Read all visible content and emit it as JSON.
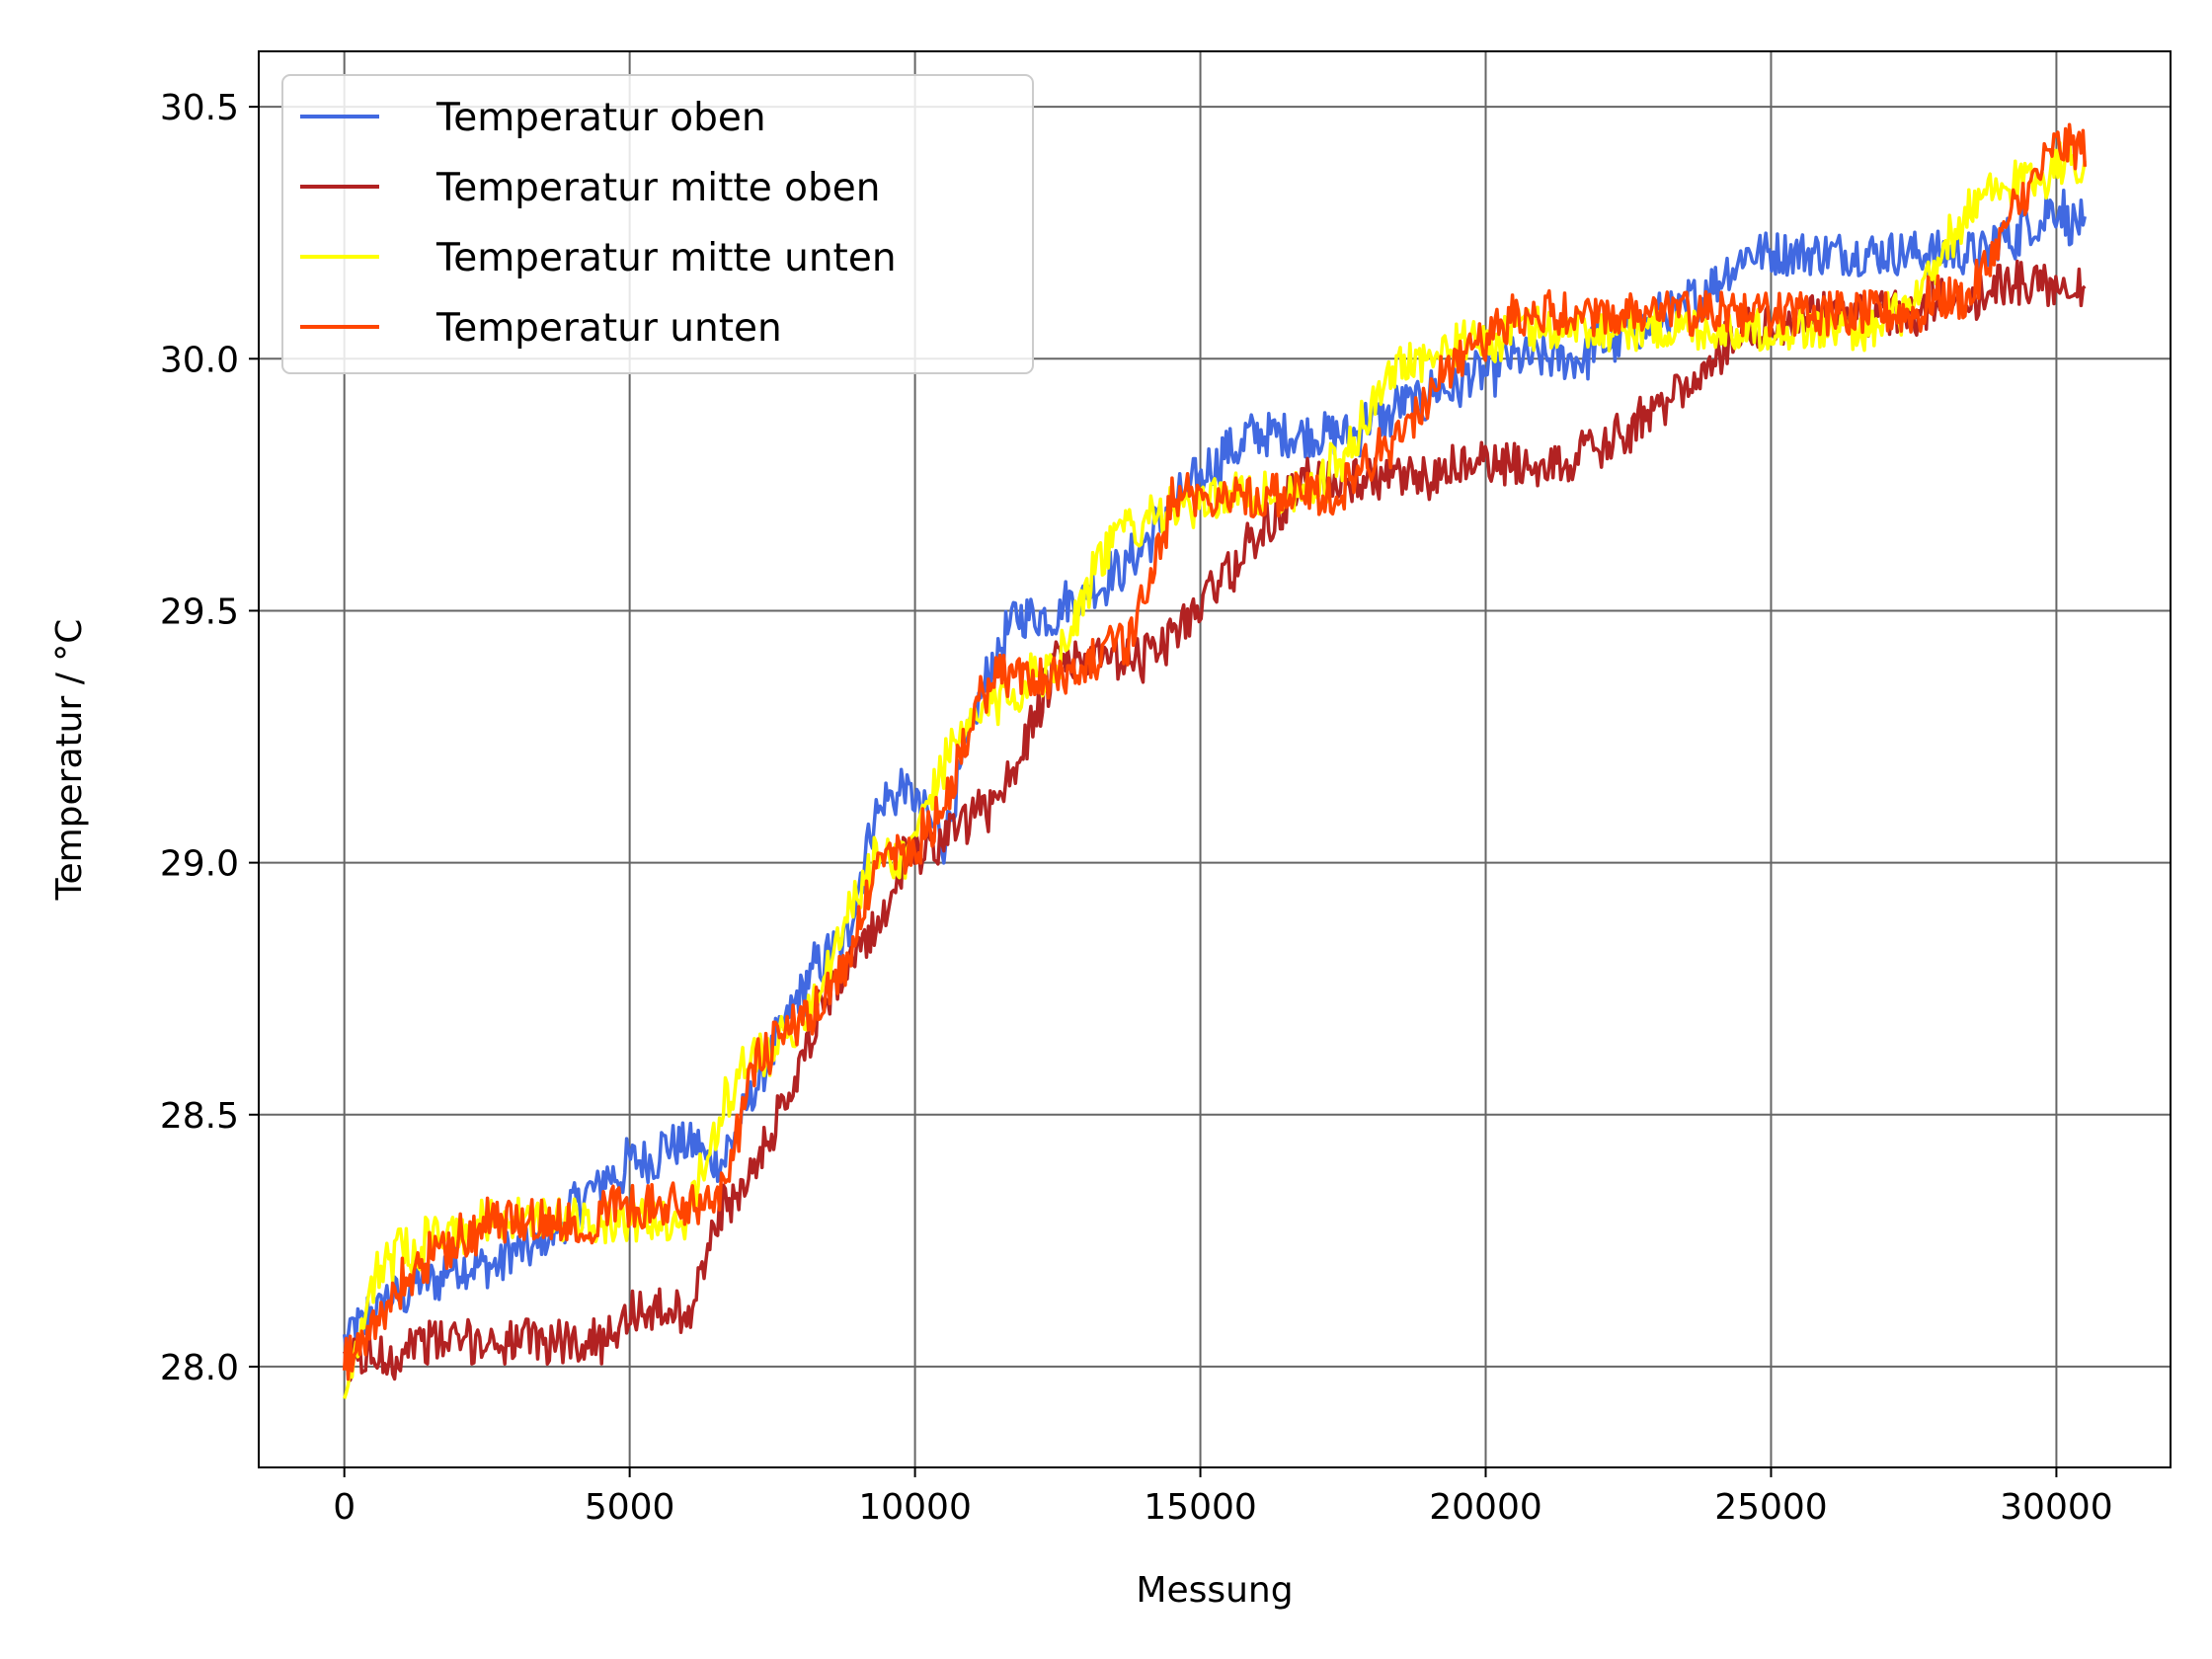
{
  "chart_data": {
    "type": "line",
    "title": "",
    "xlabel": "Messung",
    "ylabel": "Temperatur / °C",
    "xlim": [
      -1500,
      32000
    ],
    "ylim": [
      27.8,
      30.61
    ],
    "xticks": [
      0,
      5000,
      10000,
      15000,
      20000,
      25000,
      30000
    ],
    "xtick_labels": [
      "0",
      "5000",
      "10000",
      "15000",
      "20000",
      "25000",
      "30000"
    ],
    "yticks": [
      28.0,
      28.5,
      29.0,
      29.5,
      30.0,
      30.5
    ],
    "ytick_labels": [
      "28.0",
      "28.5",
      "29.0",
      "29.5",
      "30.0",
      "30.5"
    ],
    "grid": true,
    "legend_position": "upper-left",
    "series": [
      {
        "name": "Temperatur oben",
        "color": "#4169e1",
        "x": [
          0,
          600,
          1500,
          2500,
          3500,
          4300,
          5000,
          6000,
          6600,
          7200,
          7800,
          8300,
          8800,
          9300,
          9800,
          10500,
          11200,
          11800,
          12500,
          13200,
          13800,
          14500,
          15300,
          16000,
          16800,
          17500,
          18500,
          19500,
          20500,
          21500,
          22500,
          23500,
          24500,
          25500,
          26500,
          27500,
          28500,
          29300,
          30000,
          30500
        ],
        "y": [
          28.05,
          28.12,
          28.18,
          28.2,
          28.25,
          28.35,
          28.4,
          28.45,
          28.4,
          28.55,
          28.7,
          28.8,
          28.85,
          29.1,
          29.15,
          29.05,
          29.35,
          29.5,
          29.5,
          29.55,
          29.6,
          29.7,
          29.8,
          29.85,
          29.85,
          29.85,
          29.9,
          29.95,
          30.0,
          30.0,
          30.05,
          30.1,
          30.2,
          30.2,
          30.2,
          30.2,
          30.2,
          30.25,
          30.3,
          30.25
        ]
      },
      {
        "name": "Temperatur mitte oben",
        "color": "#b22222",
        "x": [
          0,
          600,
          1500,
          2500,
          3500,
          4300,
          5000,
          6000,
          6600,
          7200,
          7800,
          8300,
          8800,
          9300,
          9800,
          10500,
          11200,
          11800,
          12500,
          13200,
          13800,
          14500,
          15300,
          16000,
          16800,
          17500,
          18500,
          19500,
          20500,
          21500,
          22500,
          23500,
          24500,
          25500,
          26500,
          27500,
          28500,
          29300,
          30000,
          30500
        ],
        "y": [
          28.0,
          28.02,
          28.05,
          28.05,
          28.05,
          28.05,
          28.1,
          28.1,
          28.3,
          28.4,
          28.55,
          28.7,
          28.8,
          28.85,
          29.0,
          29.05,
          29.1,
          29.2,
          29.4,
          29.4,
          29.4,
          29.45,
          29.55,
          29.65,
          29.75,
          29.75,
          29.75,
          29.78,
          29.8,
          29.8,
          29.85,
          29.95,
          30.05,
          30.08,
          30.08,
          30.1,
          30.12,
          30.15,
          30.15,
          30.15
        ]
      },
      {
        "name": "Temperatur mitte unten",
        "color": "#ffff00",
        "x": [
          0,
          600,
          1500,
          2500,
          3500,
          4300,
          5000,
          6000,
          6600,
          7200,
          7800,
          8300,
          8800,
          9300,
          9800,
          10500,
          11200,
          11800,
          12500,
          13200,
          13800,
          14500,
          15300,
          16000,
          16800,
          17500,
          18500,
          19500,
          20500,
          21500,
          22500,
          23500,
          24500,
          25500,
          26500,
          27500,
          28500,
          29300,
          30000,
          30500
        ],
        "y": [
          27.95,
          28.2,
          28.25,
          28.28,
          28.3,
          28.3,
          28.3,
          28.3,
          28.5,
          28.62,
          28.65,
          28.75,
          28.9,
          29.0,
          29.0,
          29.2,
          29.3,
          29.35,
          29.4,
          29.6,
          29.68,
          29.7,
          29.72,
          29.72,
          29.72,
          29.8,
          30.0,
          30.02,
          30.05,
          30.05,
          30.05,
          30.05,
          30.05,
          30.05,
          30.05,
          30.1,
          30.3,
          30.35,
          30.38,
          30.38
        ]
      },
      {
        "name": "Temperatur unten",
        "color": "#ff4500",
        "x": [
          0,
          600,
          1500,
          2500,
          3500,
          4300,
          5000,
          6000,
          6600,
          7200,
          7800,
          8300,
          8800,
          9300,
          9800,
          10500,
          11200,
          11800,
          12500,
          13200,
          13800,
          14500,
          15300,
          16000,
          16800,
          17500,
          18500,
          19500,
          20500,
          21500,
          22500,
          23500,
          24500,
          25500,
          26500,
          27500,
          28500,
          29300,
          30000,
          30500
        ],
        "y": [
          28.0,
          28.1,
          28.22,
          28.28,
          28.3,
          28.3,
          28.32,
          28.32,
          28.35,
          28.6,
          28.67,
          28.7,
          28.8,
          29.0,
          29.02,
          29.1,
          29.35,
          29.38,
          29.38,
          29.4,
          29.45,
          29.72,
          29.74,
          29.74,
          29.74,
          29.74,
          29.85,
          30.0,
          30.08,
          30.08,
          30.08,
          30.08,
          30.1,
          30.1,
          30.1,
          30.1,
          30.12,
          30.3,
          30.42,
          30.42
        ]
      }
    ]
  }
}
